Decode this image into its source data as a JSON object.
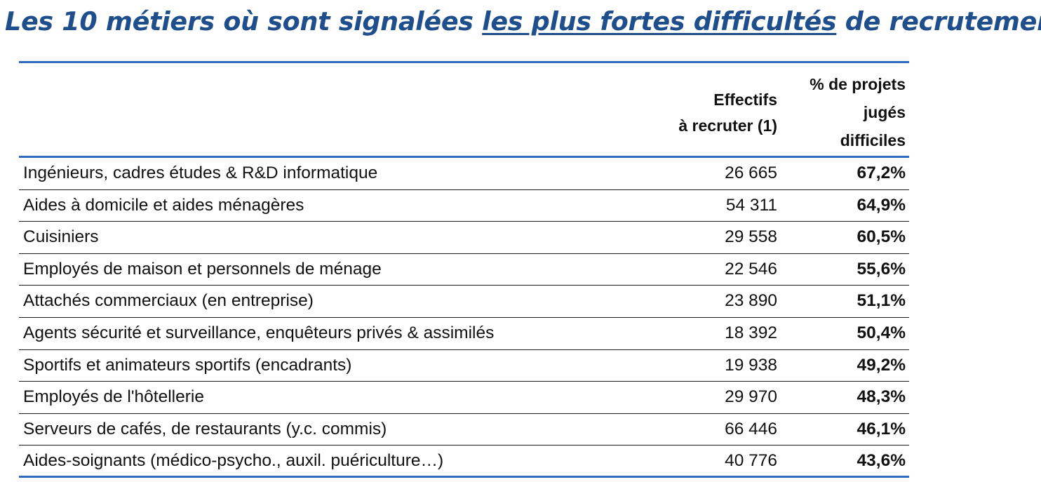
{
  "title": {
    "part1": "Les 10 métiers où sont signalées ",
    "part2": "les plus fortes difficultés",
    "part3": " de recrutement"
  },
  "table": {
    "headers": {
      "label": "",
      "effectifs": "Effectifs\nà recruter (1)",
      "pct": "% de projets\njugés\ndifficiles"
    },
    "rows": [
      {
        "label": "Ingénieurs, cadres études & R&D informatique",
        "effectifs": "26 665",
        "pct": "67,2%"
      },
      {
        "label": "Aides à domicile et aides ménagères",
        "effectifs": "54 311",
        "pct": "64,9%"
      },
      {
        "label": "Cuisiniers",
        "effectifs": "29 558",
        "pct": "60,5%"
      },
      {
        "label": "Employés de maison et personnels de ménage",
        "effectifs": "22 546",
        "pct": "55,6%"
      },
      {
        "label": "Attachés commerciaux (en entreprise)",
        "effectifs": "23 890",
        "pct": "51,1%"
      },
      {
        "label": "Agents sécurité et surveillance, enquêteurs privés & assimilés",
        "effectifs": "18 392",
        "pct": "50,4%"
      },
      {
        "label": "Sportifs et animateurs sportifs (encadrants)",
        "effectifs": "19 938",
        "pct": "49,2%"
      },
      {
        "label": "Employés de l'hôtellerie",
        "effectifs": "29 970",
        "pct": "48,3%"
      },
      {
        "label": "Serveurs de cafés, de restaurants (y.c. commis)",
        "effectifs": "66 446",
        "pct": "46,1%"
      },
      {
        "label": "Aides-soignants (médico-psycho., auxil. puériculture…)",
        "effectifs": "40 776",
        "pct": "43,6%"
      }
    ]
  },
  "colors": {
    "title": "#1f4e8c",
    "rule": "#2e6bb8",
    "text": "#111111"
  }
}
